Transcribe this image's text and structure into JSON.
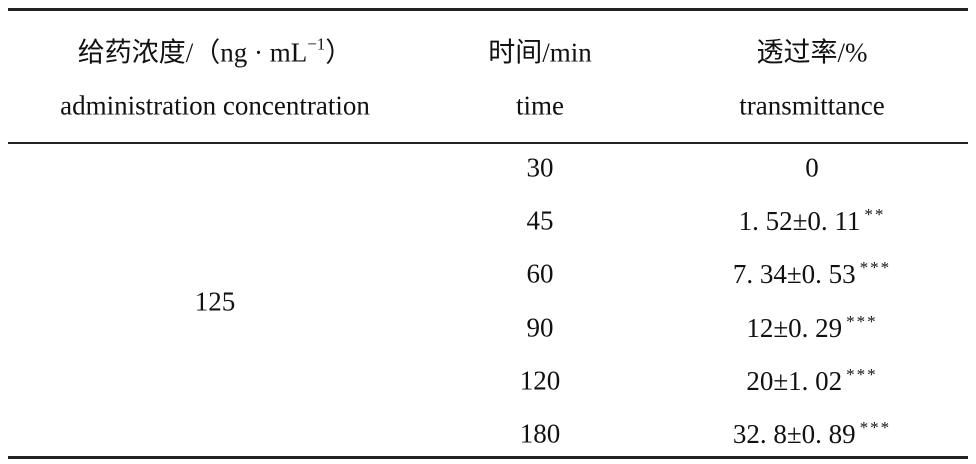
{
  "table": {
    "header": [
      {
        "zh": "给药浓度/（ng · mL",
        "zh_sup": "−1",
        "zh_end": "）",
        "en": "administration concentration"
      },
      {
        "zh": "时间/min",
        "en": "time"
      },
      {
        "zh": "透过率/%",
        "en": "transmittance"
      }
    ],
    "concentration": "125",
    "rows": [
      {
        "time": "30",
        "value": "0",
        "sig": ""
      },
      {
        "time": "45",
        "value": "1. 52±0. 11",
        "sig": "**"
      },
      {
        "time": "60",
        "value": "7. 34±0. 53",
        "sig": "***"
      },
      {
        "time": "90",
        "value": "12±0. 29",
        "sig": "***"
      },
      {
        "time": "120",
        "value": "20±1. 02",
        "sig": "***"
      },
      {
        "time": "180",
        "value": "32. 8±0. 89",
        "sig": "***"
      }
    ]
  }
}
